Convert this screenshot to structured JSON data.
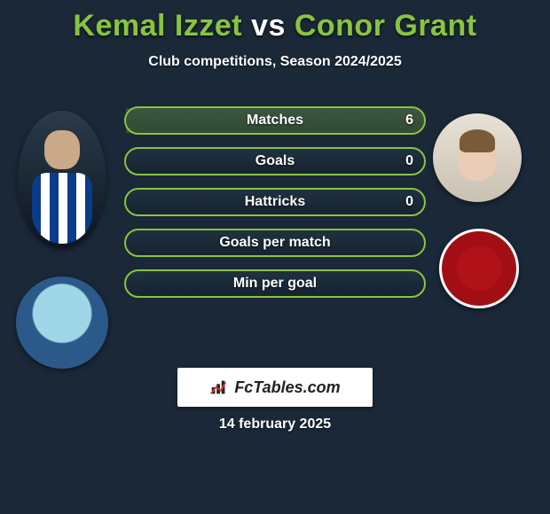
{
  "background_color": "#1a2838",
  "accent_color": "#8ac43f",
  "text_color": "#ffffff",
  "title": {
    "player1": "Kemal Izzet",
    "vs": "vs",
    "player2": "Conor Grant"
  },
  "subtitle": "Club competitions, Season 2024/2025",
  "bars": {
    "bar_border_color": "#8ac43f",
    "bar_bg_top": "#1f3142",
    "bar_bg_bottom": "#17232f",
    "label_fontsize": 16,
    "value_fontsize": 16,
    "items": [
      {
        "label": "Matches",
        "left": "",
        "right": "6",
        "fill_left_pct": 0,
        "fill_right_pct": 100
      },
      {
        "label": "Goals",
        "left": "",
        "right": "0",
        "fill_left_pct": 0,
        "fill_right_pct": 0
      },
      {
        "label": "Hattricks",
        "left": "",
        "right": "0",
        "fill_left_pct": 0,
        "fill_right_pct": 0
      },
      {
        "label": "Goals per match",
        "left": "",
        "right": "",
        "fill_left_pct": 0,
        "fill_right_pct": 0
      },
      {
        "label": "Min per goal",
        "left": "",
        "right": "",
        "fill_left_pct": 0,
        "fill_right_pct": 0
      }
    ]
  },
  "avatars": {
    "player1_name": "kemal-izzet",
    "player2_name": "conor-grant",
    "club1_name": "colchester-united",
    "club2_name": "accrington-stanley"
  },
  "brand": "FcTables.com",
  "date": "14 february 2025"
}
